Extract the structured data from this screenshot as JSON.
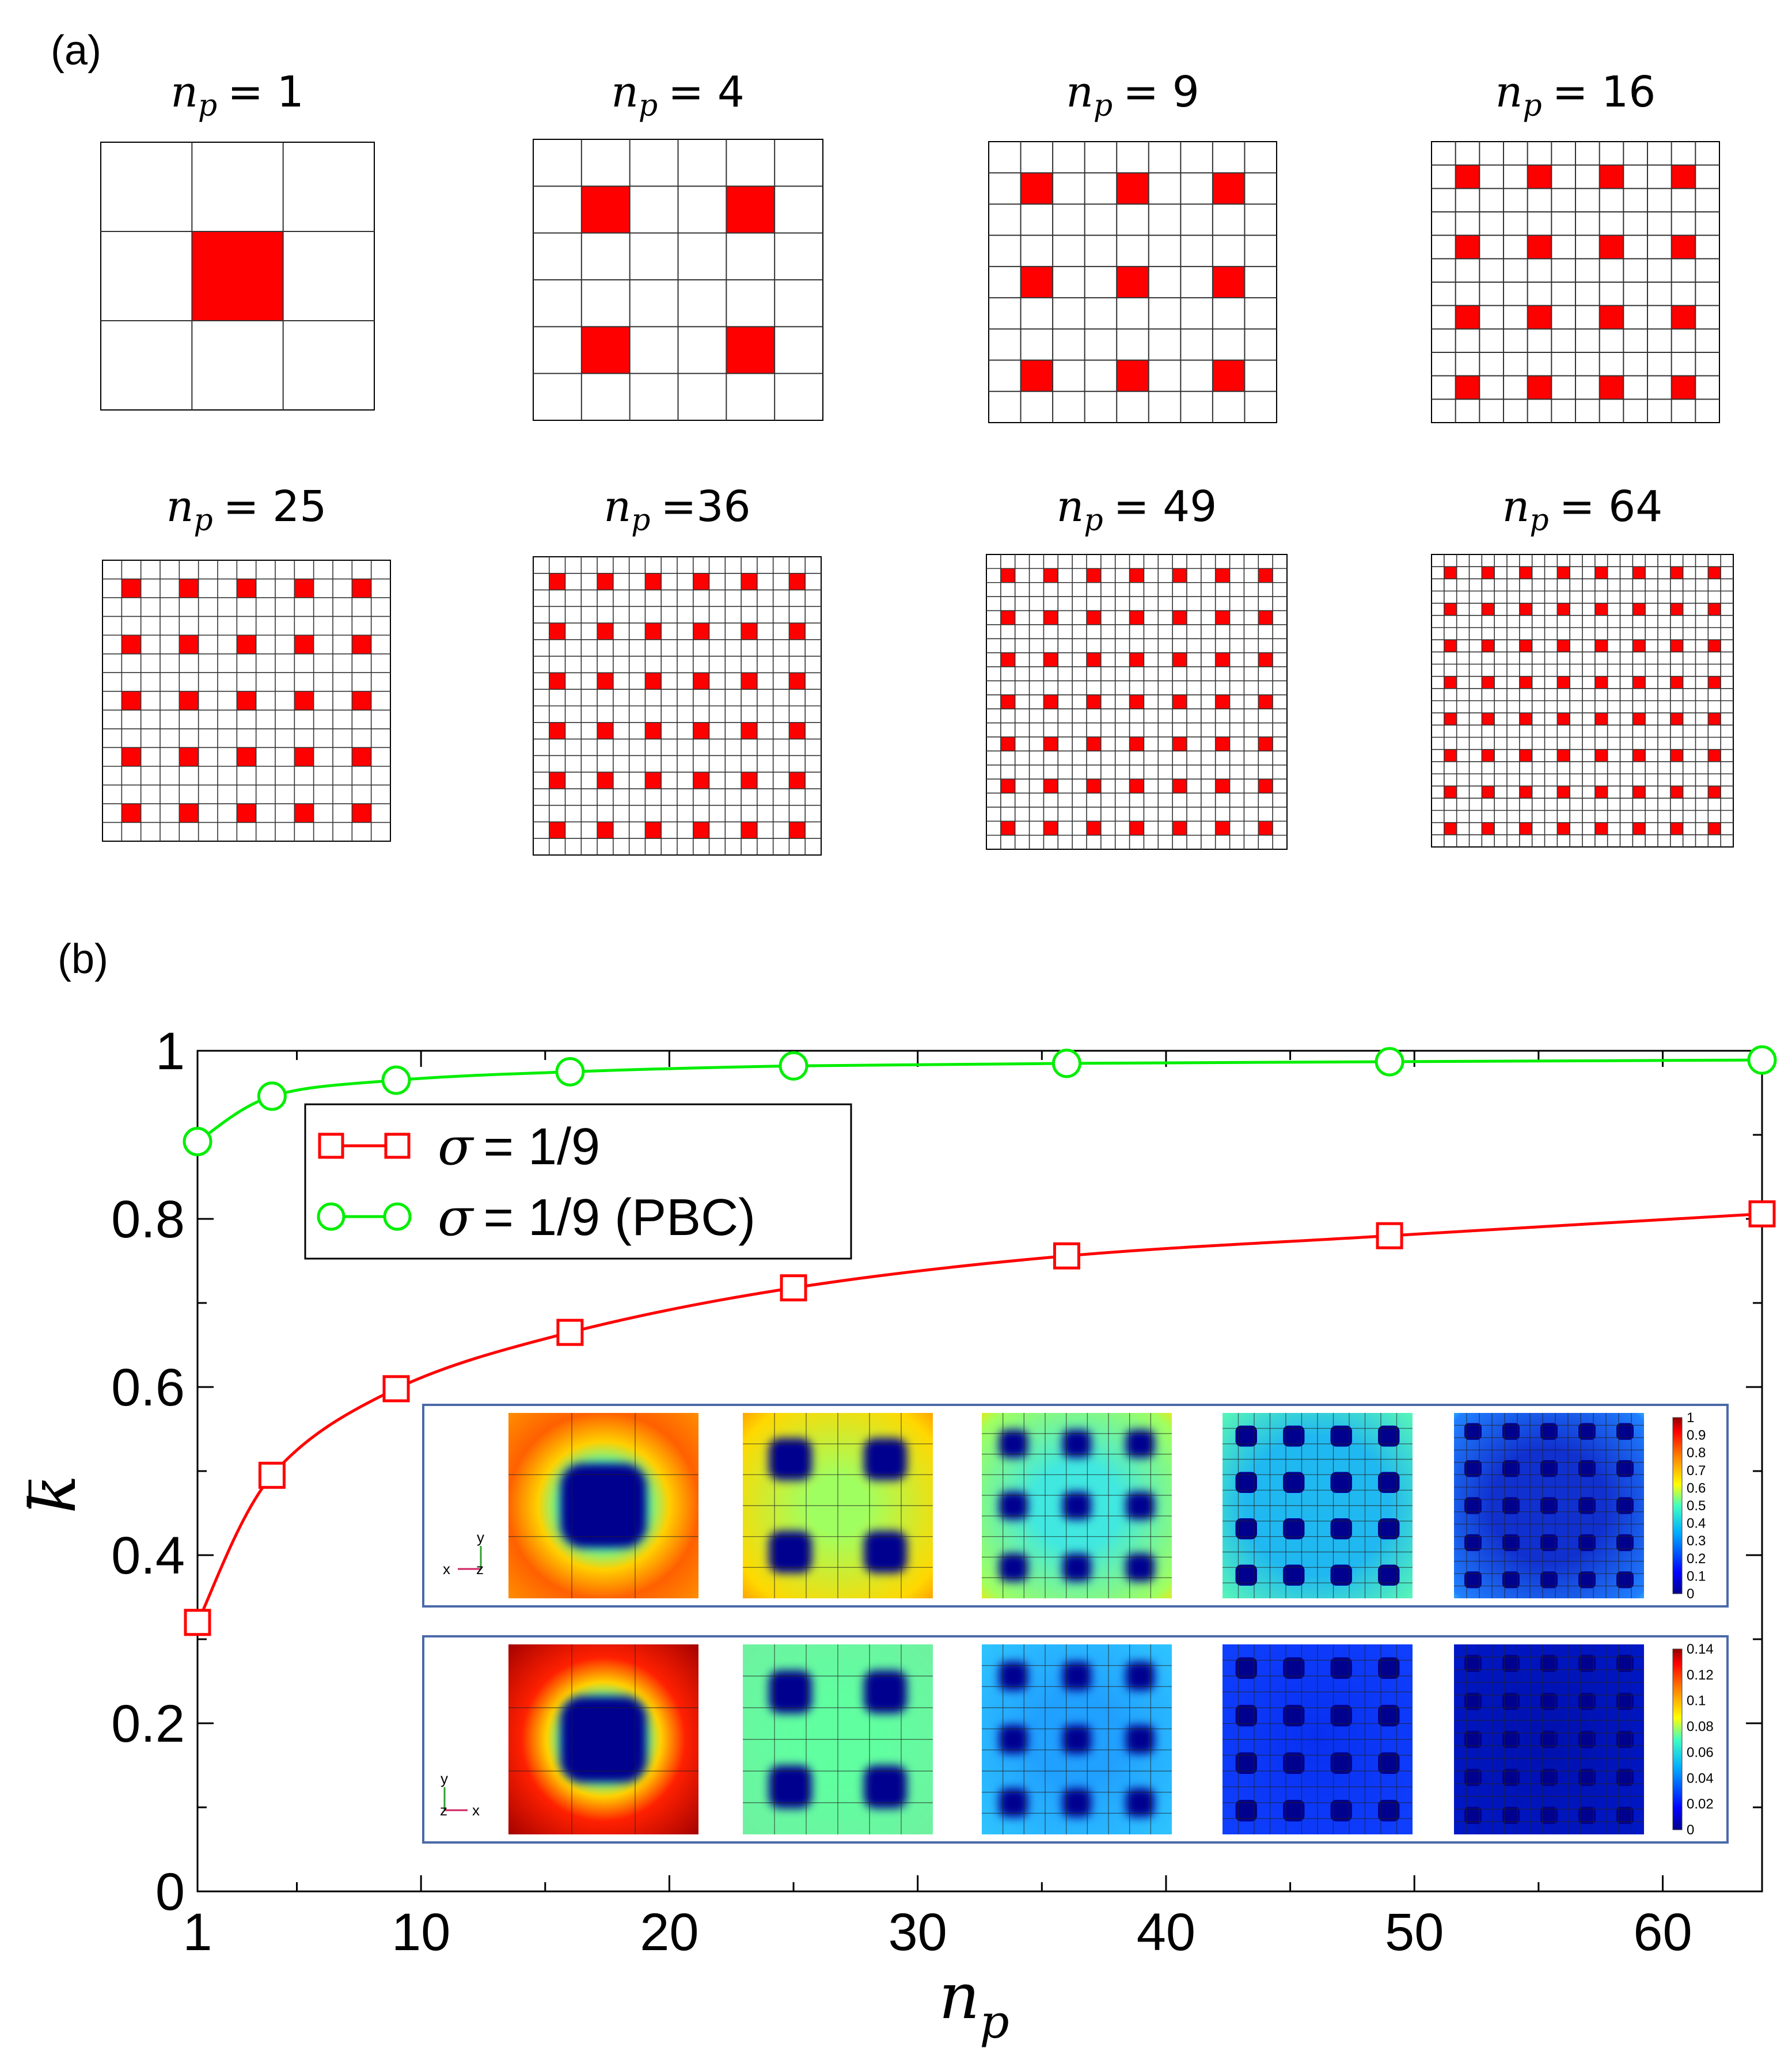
{
  "panel_a": {
    "label": "(a)",
    "np_symbol": "n",
    "np_sub": "p",
    "cases": [
      {
        "text": "= 1",
        "n": 1
      },
      {
        "text": "= 4",
        "n": 4
      },
      {
        "text": "= 9",
        "n": 9
      },
      {
        "text": "= 16",
        "n": 16
      },
      {
        "text": "= 25",
        "n": 25
      },
      {
        "text": "=36",
        "n": 36
      },
      {
        "text": "= 49",
        "n": 49
      },
      {
        "text": "= 64",
        "n": 64
      }
    ],
    "grid_color": "#000000",
    "particle_color": "#ff0000"
  },
  "panel_b": {
    "label": "(b)",
    "inset_frame_color": "#4a6aa8",
    "inset_rows": [
      {
        "triad": {
          "up": "y",
          "left": "x",
          "center": "z"
        },
        "colorbar_ticks": [
          "1",
          "0.9",
          "0.8",
          "0.7",
          "0.6",
          "0.5",
          "0.4",
          "0.3",
          "0.2",
          "0.1",
          "0"
        ]
      },
      {
        "triad": {
          "up": "y",
          "right": "x",
          "center": "z"
        },
        "colorbar_ticks": [
          "0.14",
          "0.12",
          "0.1",
          "0.08",
          "0.06",
          "0.04",
          "0.02",
          "0"
        ]
      }
    ]
  },
  "chart_data": {
    "type": "line",
    "xlabel": "n",
    "xlabel_sub": "p",
    "ylabel": "k",
    "xlim": [
      1,
      64
    ],
    "ylim": [
      0,
      1
    ],
    "xticks": [
      1,
      10,
      20,
      30,
      40,
      50,
      60
    ],
    "yticks": [
      0,
      0.2,
      0.4,
      0.6,
      0.8,
      1
    ],
    "ytick_labels": [
      "0",
      "0.2",
      "0.4",
      "0.6",
      "0.8",
      "1"
    ],
    "grid": false,
    "legend_position": "upper-left",
    "x": [
      1,
      4,
      9,
      16,
      25,
      36,
      49,
      64
    ],
    "series": [
      {
        "name": "σ = 1/9",
        "legend_sym": "σ",
        "legend_rest": "= 1/9",
        "color": "#ff0000",
        "marker": "square",
        "values": [
          0.32,
          0.495,
          0.598,
          0.665,
          0.718,
          0.756,
          0.78,
          0.806
        ]
      },
      {
        "name": "σ = 1/9 (PBC)",
        "legend_sym": "σ",
        "legend_rest": "= 1/9 (PBC)",
        "color": "#00ee00",
        "marker": "circle",
        "values": [
          0.892,
          0.946,
          0.965,
          0.975,
          0.982,
          0.985,
          0.987,
          0.989
        ]
      }
    ]
  }
}
